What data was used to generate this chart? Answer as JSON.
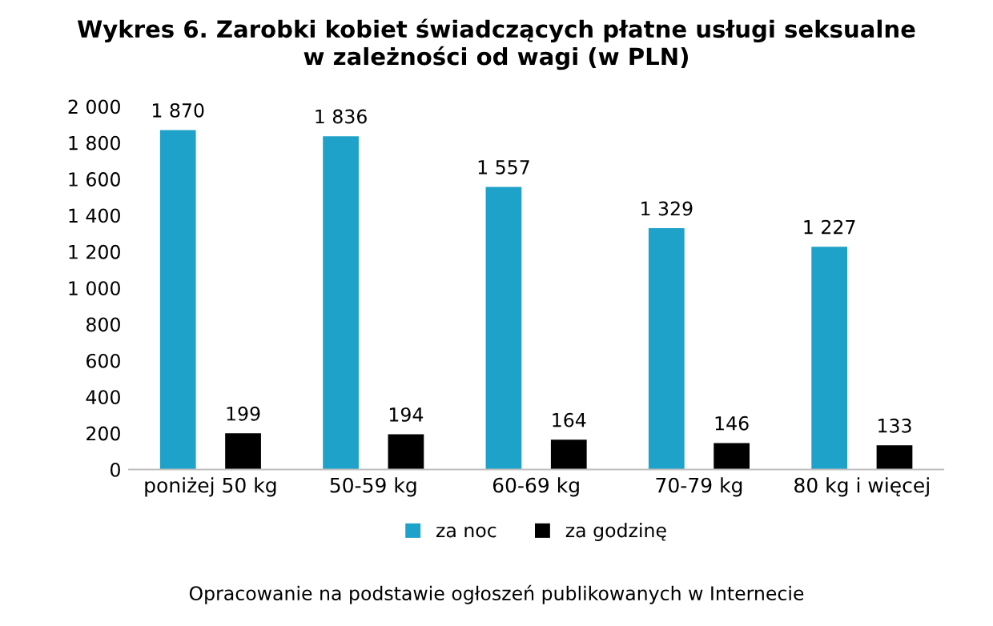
{
  "chart_data": {
    "type": "bar",
    "title": "Wykres 6. Zarobki kobiet świadczących płatne usługi seksualne\nw zależności od wagi (w PLN)",
    "categories": [
      "poniżej 50 kg",
      "50-59 kg",
      "60-69 kg",
      "70-79 kg",
      "80 kg i więcej"
    ],
    "series": [
      {
        "name": "za noc",
        "color": "#1fa2c9",
        "values": [
          1870,
          1836,
          1557,
          1329,
          1227
        ],
        "value_labels": [
          "1 870",
          "1 836",
          "1 557",
          "1 329",
          "1 227"
        ]
      },
      {
        "name": "za godzinę",
        "color": "#000000",
        "values": [
          199,
          194,
          164,
          146,
          133
        ],
        "value_labels": [
          "199",
          "194",
          "164",
          "146",
          "133"
        ]
      }
    ],
    "ylim": [
      0,
      2000
    ],
    "yticks": [
      {
        "value": 0,
        "label": "0"
      },
      {
        "value": 200,
        "label": "200"
      },
      {
        "value": 400,
        "label": "400"
      },
      {
        "value": 600,
        "label": "600"
      },
      {
        "value": 800,
        "label": "800"
      },
      {
        "value": 1000,
        "label": "1 000"
      },
      {
        "value": 1200,
        "label": "1 200"
      },
      {
        "value": 1400,
        "label": "1 400"
      },
      {
        "value": 1600,
        "label": "1 600"
      },
      {
        "value": 1800,
        "label": "1 800"
      },
      {
        "value": 2000,
        "label": "2 000"
      }
    ],
    "grid": false,
    "legend": "bottom",
    "annotations": [
      "Opracowanie na podstawie ogłoszeń publikowanych w Internecie"
    ]
  }
}
